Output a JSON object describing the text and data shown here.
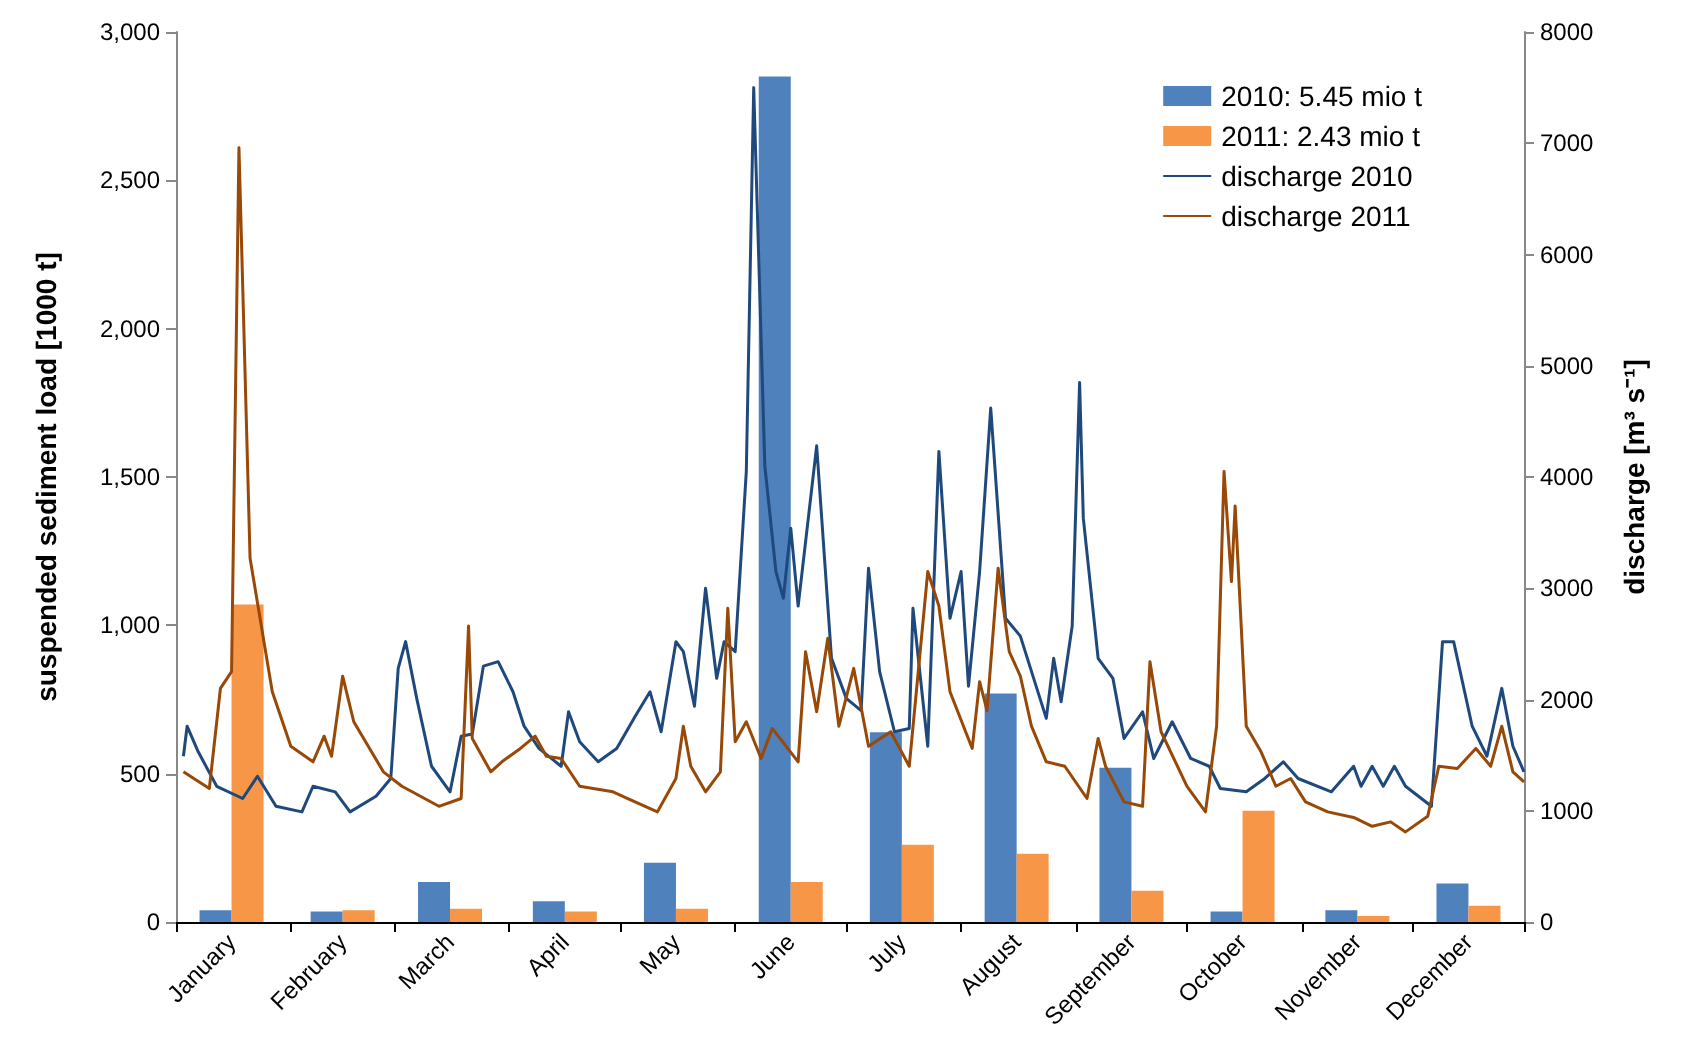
{
  "chart_data": {
    "type": "bar",
    "ylabel": "suspended sediment load [1000 t]",
    "y2label": "discharge [m³ s⁻¹]",
    "series": [
      {
        "name": "2010: 5.45 mio t",
        "color": "#4f81bd",
        "x": [
          "--01-16",
          "--02-15",
          "--03-16",
          "--04-16",
          "--05-16",
          "--06-16",
          "--07-16",
          "--08-16",
          "--09-16",
          "--10-16",
          "--11-16",
          "--12-16"
        ],
        "values": [
          40,
          35,
          135,
          70,
          200,
          2850,
          640,
          770,
          520,
          35,
          40,
          130
        ]
      },
      {
        "name": "2011: 2.43 mio t",
        "color": "#f79646",
        "x": [
          "--01-16",
          "--02-15",
          "--03-16",
          "--04-16",
          "--05-16",
          "--06-16",
          "--07-16",
          "--08-16",
          "--09-16",
          "--10-16",
          "--11-16",
          "--12-16"
        ],
        "values": [
          1070,
          40,
          45,
          35,
          45,
          135,
          260,
          230,
          105,
          375,
          20,
          55
        ]
      },
      {
        "name": "discharge 2010",
        "type": "line",
        "axis": "y2",
        "color": "#1f497d",
        "x": [
          "--01-03",
          "--01-04",
          "--01-07",
          "--01-12",
          "--01-19",
          "--01-23",
          "--01-28",
          "--02-04",
          "--02-07",
          "--02-13",
          "--02-17",
          "--02-24",
          "--02-28",
          "--03-02",
          "--03-04",
          "--03-07",
          "--03-11",
          "--03-16",
          "--03-19",
          "--03-22",
          "--03-25",
          "--03-29",
          "--04-02",
          "--04-05",
          "--04-09",
          "--04-12",
          "--04-15",
          "--04-17",
          "--04-20",
          "--04-25",
          "--04-30",
          "--05-05",
          "--05-09",
          "--05-12",
          "--05-16",
          "--05-18",
          "--05-21",
          "--05-24",
          "--05-27",
          "--05-29",
          "--06-01",
          "--06-04",
          "--06-06",
          "--06-09",
          "--06-12",
          "--06-14",
          "--06-16",
          "--06-18",
          "--06-23",
          "--06-27",
          "--07-01",
          "--07-05",
          "--07-07",
          "--07-10",
          "--07-14",
          "--07-18",
          "--07-19",
          "--07-23",
          "--07-26",
          "--07-29",
          "--08-01",
          "--08-03",
          "--08-06",
          "--08-09",
          "--08-13",
          "--08-17",
          "--08-24",
          "--08-26",
          "--08-28",
          "--08-31",
          "--09-02",
          "--09-03",
          "--09-07",
          "--09-11",
          "--09-14",
          "--09-19",
          "--09-22",
          "--09-27",
          "--10-02",
          "--10-07",
          "--10-10",
          "--10-17",
          "--10-22",
          "--10-27",
          "--10-31",
          "--11-09",
          "--11-15",
          "--11-17",
          "--11-20",
          "--11-23",
          "--11-26",
          "--11-29",
          "--12-06",
          "--12-09",
          "--12-12",
          "--12-17",
          "--12-21",
          "--12-25",
          "--12-28",
          "--12-31"
        ],
        "values": [
          1490,
          1760,
          1530,
          1220,
          1110,
          1310,
          1040,
          990,
          1220,
          1170,
          990,
          1130,
          1290,
          2280,
          2520,
          2010,
          1400,
          1170,
          1670,
          1690,
          2300,
          2340,
          2070,
          1760,
          1560,
          1480,
          1400,
          1890,
          1620,
          1440,
          1560,
          1850,
          2070,
          1710,
          2520,
          2430,
          1940,
          3000,
          2190,
          2520,
          2430,
          4050,
          7500,
          4100,
          3150,
          2910,
          3540,
          2840,
          4280,
          2370,
          2010,
          1900,
          3180,
          2250,
          1710,
          1740,
          2820,
          1580,
          4230,
          2730,
          3150,
          2120,
          3150,
          4620,
          2730,
          2570,
          1830,
          2370,
          1980,
          2660,
          4850,
          3630,
          2370,
          2190,
          1650,
          1890,
          1470,
          1800,
          1470,
          1400,
          1200,
          1170,
          1290,
          1440,
          1290,
          1170,
          1400,
          1220,
          1400,
          1220,
          1400,
          1220,
          1040,
          2520,
          2520,
          1760,
          1490,
          2100,
          1580,
          1350
        ]
      },
      {
        "name": "discharge 2011",
        "type": "line",
        "axis": "y2",
        "color": "#984807",
        "x": [
          "--01-03",
          "--01-10",
          "--01-13",
          "--01-16",
          "--01-18",
          "--01-21",
          "--01-27",
          "--02-01",
          "--02-07",
          "--02-10",
          "--02-12",
          "--02-15",
          "--02-18",
          "--02-26",
          "--03-03",
          "--03-13",
          "--03-19",
          "--03-21",
          "--03-22",
          "--03-27",
          "--03-30",
          "--04-04",
          "--04-08",
          "--04-11",
          "--04-15",
          "--04-20",
          "--04-29",
          "--05-03",
          "--05-11",
          "--05-16",
          "--05-18",
          "--05-20",
          "--05-24",
          "--05-28",
          "--05-30",
          "--06-01",
          "--06-04",
          "--06-08",
          "--06-11",
          "--06-18",
          "--06-20",
          "--06-23",
          "--06-26",
          "--06-29",
          "--07-03",
          "--07-07",
          "--07-13",
          "--07-18",
          "--07-23",
          "--07-26",
          "--07-29",
          "--08-04",
          "--08-06",
          "--08-08",
          "--08-11",
          "--08-14",
          "--08-17",
          "--08-20",
          "--08-24",
          "--08-29",
          "--09-04",
          "--09-07",
          "--09-09",
          "--09-14",
          "--09-19",
          "--09-21",
          "--09-24",
          "--10-01",
          "--10-06",
          "--10-09",
          "--10-11",
          "--10-13",
          "--10-14",
          "--10-17",
          "--10-21",
          "--10-25",
          "--10-29",
          "--11-02",
          "--11-08",
          "--11-15",
          "--11-20",
          "--11-25",
          "--11-29",
          "--12-05",
          "--12-08",
          "--12-13",
          "--12-18",
          "--12-22",
          "--12-25",
          "--12-28",
          "--12-31"
        ],
        "values": [
          1350,
          1200,
          2100,
          2250,
          6960,
          3270,
          2070,
          1580,
          1440,
          1670,
          1490,
          2210,
          1800,
          1350,
          1220,
          1040,
          1110,
          2660,
          1650,
          1350,
          1440,
          1560,
          1670,
          1490,
          1470,
          1220,
          1170,
          1110,
          990,
          1290,
          1760,
          1400,
          1170,
          1350,
          2820,
          1620,
          1800,
          1470,
          1740,
          1440,
          2430,
          1890,
          2550,
          1760,
          2280,
          1580,
          1710,
          1400,
          3150,
          2840,
          2070,
          1560,
          2160,
          1900,
          3180,
          2430,
          2210,
          1760,
          1440,
          1400,
          1110,
          1650,
          1400,
          1080,
          1040,
          2340,
          1710,
          1220,
          990,
          1760,
          4050,
          3060,
          3740,
          1760,
          1530,
          1220,
          1290,
          1080,
          990,
          940,
          860,
          900,
          810,
          950,
          1400,
          1380,
          1560,
          1400,
          1760,
          1350,
          1260
        ]
      }
    ],
    "xlim": [
      "--01-01",
      "--12-31"
    ],
    "xticks": [
      {
        "value": "--01-01",
        "label": null
      },
      {
        "value": "--02-01",
        "label": null
      },
      {
        "value": "--03-01",
        "label": null
      },
      {
        "value": "--04-01",
        "label": null
      },
      {
        "value": "--05-01",
        "label": null
      },
      {
        "value": "--06-01",
        "label": null
      },
      {
        "value": "--07-01",
        "label": null
      },
      {
        "value": "--08-01",
        "label": null
      },
      {
        "value": "--09-01",
        "label": null
      },
      {
        "value": "--10-01",
        "label": null
      },
      {
        "value": "--11-01",
        "label": null
      },
      {
        "value": "--12-01",
        "label": null
      },
      {
        "value": "--12-31",
        "label": null
      },
      {
        "value": "--01-16",
        "label": "January"
      },
      {
        "value": "--02-15",
        "label": "February"
      },
      {
        "value": "--03-16",
        "label": "March"
      },
      {
        "value": "--04-16",
        "label": "April"
      },
      {
        "value": "--05-16",
        "label": "May"
      },
      {
        "value": "--06-16",
        "label": "June"
      },
      {
        "value": "--07-16",
        "label": "July"
      },
      {
        "value": "--08-16",
        "label": "August"
      },
      {
        "value": "--09-16",
        "label": "September"
      },
      {
        "value": "--10-16",
        "label": "October"
      },
      {
        "value": "--11-16",
        "label": "November"
      },
      {
        "value": "--12-16",
        "label": "December"
      }
    ],
    "ylim": [
      0,
      3000
    ],
    "yticks": [
      0,
      500,
      {
        "value": 1000,
        "label": "1,000"
      },
      {
        "value": 1500,
        "label": "1,500"
      },
      {
        "value": 2000,
        "label": "2,000"
      },
      {
        "value": 2500,
        "label": "2,500"
      },
      {
        "value": 3000,
        "label": "3,000"
      }
    ],
    "y2lim": [
      0,
      8000
    ],
    "y2ticks": [
      0,
      1000,
      2000,
      3000,
      4000,
      5000,
      6000,
      7000,
      8000
    ],
    "grid": false,
    "legend": "top right",
    "marker": "none",
    "line_style": "solid"
  }
}
